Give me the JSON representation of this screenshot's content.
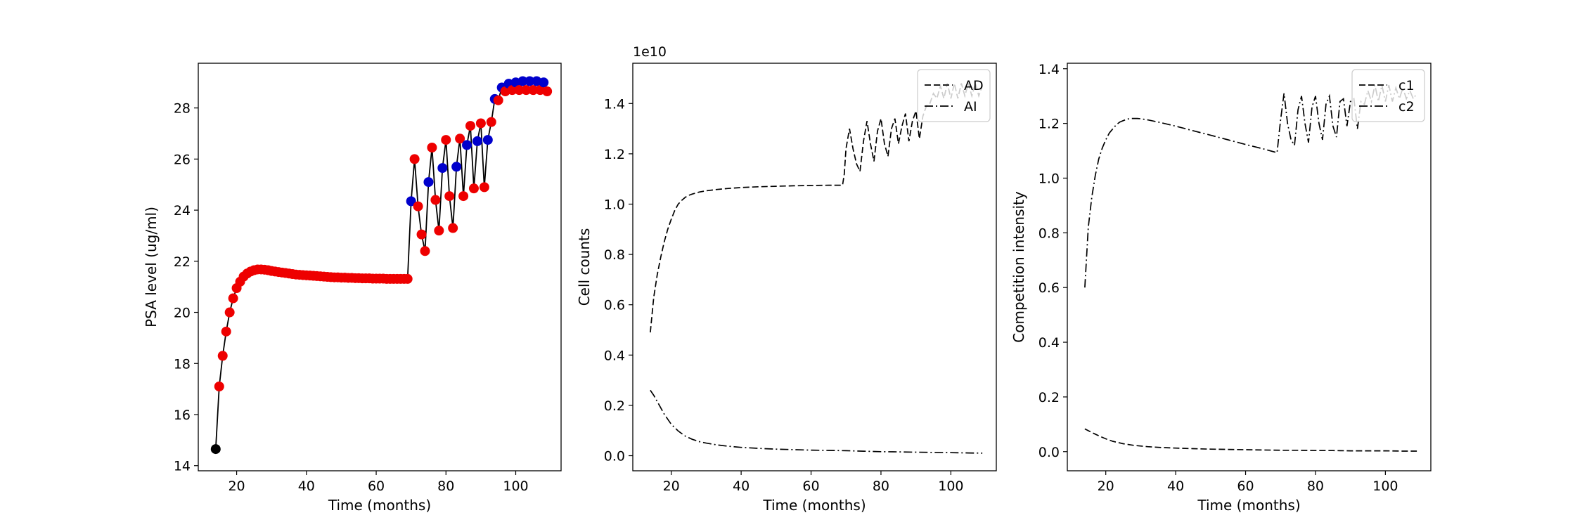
{
  "chart_data": [
    {
      "type": "line",
      "xlabel": "Time (months)",
      "ylabel": "PSA level (ug/ml)",
      "xlim": [
        9,
        113
      ],
      "ylim": [
        13.8,
        29.75
      ],
      "xticks": [
        20,
        40,
        60,
        80,
        100
      ],
      "yticks": [
        14,
        16,
        18,
        20,
        22,
        24,
        26,
        28
      ],
      "series": [
        {
          "style": "solid",
          "color": "#000000",
          "x": [
            14,
            15,
            16,
            17,
            18,
            19,
            20,
            21,
            22,
            23,
            24,
            25,
            26,
            27,
            28,
            29,
            30,
            31,
            32,
            33,
            34,
            35,
            36,
            37,
            38,
            39,
            40,
            41,
            42,
            43,
            44,
            45,
            46,
            47,
            48,
            49,
            50,
            51,
            52,
            53,
            54,
            55,
            56,
            57,
            58,
            59,
            60,
            61,
            62,
            63,
            64,
            65,
            66,
            67,
            68,
            69,
            70,
            71,
            72,
            73,
            74,
            75,
            76,
            77,
            78,
            79,
            80,
            81,
            82,
            83,
            84,
            85,
            86,
            87,
            88,
            89,
            90,
            91,
            92,
            93,
            94,
            95,
            96,
            97,
            98,
            99,
            100,
            101,
            102,
            103,
            104,
            105,
            106,
            107,
            108,
            109
          ],
          "y": [
            14.65,
            17.1,
            18.3,
            19.25,
            20.0,
            20.55,
            20.95,
            21.2,
            21.4,
            21.52,
            21.6,
            21.65,
            21.68,
            21.68,
            21.67,
            21.65,
            21.62,
            21.6,
            21.58,
            21.56,
            21.54,
            21.52,
            21.5,
            21.48,
            21.47,
            21.46,
            21.45,
            21.44,
            21.43,
            21.42,
            21.41,
            21.4,
            21.39,
            21.38,
            21.37,
            21.37,
            21.36,
            21.36,
            21.35,
            21.35,
            21.34,
            21.34,
            21.33,
            21.33,
            21.33,
            21.32,
            21.32,
            21.32,
            21.32,
            21.31,
            21.31,
            21.31,
            21.31,
            21.31,
            21.31,
            21.31,
            24.35,
            26.0,
            24.15,
            23.05,
            22.4,
            25.1,
            26.45,
            24.4,
            23.2,
            25.65,
            26.75,
            24.55,
            23.3,
            25.7,
            26.8,
            24.55,
            26.55,
            27.3,
            24.85,
            26.7,
            27.4,
            24.9,
            26.75,
            27.45,
            28.35,
            28.3,
            28.8,
            28.65,
            28.95,
            28.7,
            29.0,
            28.7,
            29.05,
            28.7,
            29.05,
            28.7,
            29.05,
            28.7,
            29.0,
            28.65
          ]
        }
      ],
      "marker_colors": [
        "#000000",
        "#ee0000",
        "#ee0000",
        "#ee0000",
        "#ee0000",
        "#ee0000",
        "#ee0000",
        "#ee0000",
        "#ee0000",
        "#ee0000",
        "#ee0000",
        "#ee0000",
        "#ee0000",
        "#ee0000",
        "#ee0000",
        "#ee0000",
        "#ee0000",
        "#ee0000",
        "#ee0000",
        "#ee0000",
        "#ee0000",
        "#ee0000",
        "#ee0000",
        "#ee0000",
        "#ee0000",
        "#ee0000",
        "#ee0000",
        "#ee0000",
        "#ee0000",
        "#ee0000",
        "#ee0000",
        "#ee0000",
        "#ee0000",
        "#ee0000",
        "#ee0000",
        "#ee0000",
        "#ee0000",
        "#ee0000",
        "#ee0000",
        "#ee0000",
        "#ee0000",
        "#ee0000",
        "#ee0000",
        "#ee0000",
        "#ee0000",
        "#ee0000",
        "#ee0000",
        "#ee0000",
        "#ee0000",
        "#ee0000",
        "#ee0000",
        "#ee0000",
        "#ee0000",
        "#ee0000",
        "#ee0000",
        "#ee0000",
        "#0000cc",
        "#ee0000",
        "#ee0000",
        "#ee0000",
        "#ee0000",
        "#0000cc",
        "#ee0000",
        "#ee0000",
        "#ee0000",
        "#0000cc",
        "#ee0000",
        "#ee0000",
        "#ee0000",
        "#0000cc",
        "#ee0000",
        "#ee0000",
        "#0000cc",
        "#ee0000",
        "#ee0000",
        "#0000cc",
        "#ee0000",
        "#ee0000",
        "#0000cc",
        "#ee0000",
        "#0000cc",
        "#ee0000",
        "#0000cc",
        "#ee0000",
        "#0000cc",
        "#ee0000",
        "#0000cc",
        "#ee0000",
        "#0000cc",
        "#ee0000",
        "#0000cc",
        "#ee0000",
        "#0000cc",
        "#ee0000",
        "#0000cc",
        "#ee0000"
      ]
    },
    {
      "type": "line",
      "xlabel": "Time (months)",
      "ylabel": "Cell counts",
      "offset_text": "1e10",
      "xlim": [
        9,
        113
      ],
      "ylim": [
        -0.06,
        1.56
      ],
      "xticks": [
        20,
        40,
        60,
        80,
        100
      ],
      "yticks": [
        0.0,
        0.2,
        0.4,
        0.6,
        0.8,
        1.0,
        1.2,
        1.4
      ],
      "legend": {
        "position": "upper right",
        "entries": [
          "AD",
          "AI"
        ]
      },
      "series": [
        {
          "name": "AD",
          "style": "dashed",
          "x": [
            14,
            15,
            16,
            17,
            18,
            19,
            20,
            21,
            22,
            23,
            24,
            25,
            26,
            28,
            30,
            33,
            36,
            40,
            45,
            50,
            55,
            60,
            65,
            69,
            69.5,
            70,
            71,
            72,
            73,
            74,
            75,
            76,
            77,
            78,
            79,
            80,
            81,
            82,
            83,
            84,
            85,
            86,
            87,
            88,
            89,
            90,
            91,
            92,
            93,
            94,
            95,
            96,
            97,
            98,
            99,
            100,
            101,
            102,
            103,
            104,
            105,
            106,
            107,
            108,
            109
          ],
          "y": [
            0.49,
            0.63,
            0.72,
            0.79,
            0.85,
            0.9,
            0.94,
            0.975,
            1.0,
            1.015,
            1.027,
            1.035,
            1.04,
            1.048,
            1.053,
            1.058,
            1.062,
            1.066,
            1.069,
            1.071,
            1.073,
            1.074,
            1.075,
            1.075,
            1.12,
            1.22,
            1.3,
            1.22,
            1.16,
            1.13,
            1.25,
            1.33,
            1.24,
            1.17,
            1.29,
            1.34,
            1.24,
            1.19,
            1.3,
            1.34,
            1.24,
            1.31,
            1.36,
            1.25,
            1.33,
            1.37,
            1.26,
            1.35,
            1.39,
            1.4,
            1.44,
            1.42,
            1.47,
            1.42,
            1.48,
            1.42,
            1.48,
            1.42,
            1.48,
            1.43,
            1.48,
            1.43,
            1.48,
            1.43,
            1.47
          ]
        },
        {
          "name": "AI",
          "style": "dashdot",
          "x": [
            14,
            15,
            16,
            17,
            18,
            20,
            22,
            24,
            26,
            28,
            30,
            33,
            36,
            40,
            45,
            50,
            55,
            60,
            65,
            70,
            75,
            80,
            85,
            90,
            95,
            100,
            105,
            109
          ],
          "y": [
            0.26,
            0.24,
            0.215,
            0.19,
            0.165,
            0.125,
            0.098,
            0.078,
            0.065,
            0.056,
            0.05,
            0.043,
            0.038,
            0.033,
            0.029,
            0.026,
            0.024,
            0.022,
            0.021,
            0.02,
            0.018,
            0.016,
            0.015,
            0.014,
            0.013,
            0.012,
            0.011,
            0.01
          ]
        }
      ]
    },
    {
      "type": "line",
      "xlabel": "Time (months)",
      "ylabel": "Competition intensity",
      "xlim": [
        9,
        113
      ],
      "ylim": [
        -0.07,
        1.42
      ],
      "xticks": [
        20,
        40,
        60,
        80,
        100
      ],
      "yticks": [
        0.0,
        0.2,
        0.4,
        0.6,
        0.8,
        1.0,
        1.2,
        1.4
      ],
      "legend": {
        "position": "upper right",
        "entries": [
          "c1",
          "c2"
        ]
      },
      "series": [
        {
          "name": "c1",
          "style": "dashed",
          "x": [
            14,
            16,
            18,
            20,
            22,
            25,
            28,
            32,
            36,
            40,
            45,
            50,
            55,
            60,
            65,
            70,
            75,
            80,
            85,
            90,
            95,
            100,
            105,
            109
          ],
          "y": [
            0.083,
            0.07,
            0.058,
            0.047,
            0.038,
            0.029,
            0.023,
            0.018,
            0.015,
            0.013,
            0.011,
            0.009,
            0.008,
            0.007,
            0.006,
            0.005,
            0.005,
            0.004,
            0.004,
            0.003,
            0.003,
            0.003,
            0.002,
            0.002
          ]
        },
        {
          "name": "c2",
          "style": "dashdot",
          "x": [
            14,
            15,
            16,
            17,
            18,
            19,
            20,
            21,
            22,
            23,
            24,
            25,
            26,
            27,
            28,
            29,
            30,
            32,
            35,
            40,
            45,
            50,
            55,
            60,
            65,
            69,
            70,
            71,
            72,
            73,
            74,
            75,
            76,
            77,
            78,
            79,
            80,
            81,
            82,
            83,
            84,
            85,
            86,
            87,
            88,
            89,
            90,
            91,
            92,
            93,
            94,
            95,
            96,
            97,
            98,
            99,
            100,
            101,
            102,
            103,
            104,
            105,
            106,
            107,
            108,
            109
          ],
          "y": [
            0.6,
            0.82,
            0.93,
            1.01,
            1.07,
            1.11,
            1.14,
            1.165,
            1.18,
            1.195,
            1.205,
            1.21,
            1.215,
            1.218,
            1.218,
            1.218,
            1.217,
            1.213,
            1.205,
            1.19,
            1.173,
            1.157,
            1.14,
            1.123,
            1.107,
            1.093,
            1.21,
            1.31,
            1.2,
            1.14,
            1.12,
            1.25,
            1.3,
            1.2,
            1.13,
            1.26,
            1.3,
            1.2,
            1.14,
            1.27,
            1.3,
            1.19,
            1.15,
            1.28,
            1.29,
            1.19,
            1.28,
            1.29,
            1.18,
            1.28,
            1.27,
            1.32,
            1.28,
            1.34,
            1.28,
            1.34,
            1.28,
            1.34,
            1.28,
            1.33,
            1.29,
            1.33,
            1.29,
            1.32,
            1.29,
            1.31
          ]
        }
      ]
    }
  ]
}
